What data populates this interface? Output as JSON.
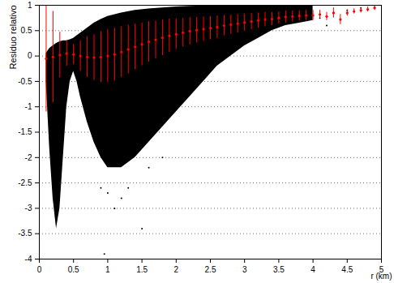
{
  "chart_data": {
    "type": "scatter",
    "x_label": "r (km)",
    "y_label": "Residuo relativo",
    "xlim": [
      0,
      5
    ],
    "ylim": [
      -4,
      1
    ],
    "xticks": [
      0,
      0.5,
      1,
      1.5,
      2,
      2.5,
      3,
      3.5,
      4,
      4.5,
      5
    ],
    "yticks": [
      -4,
      -3.5,
      -3,
      -2.5,
      -2,
      -1.5,
      -1,
      -0.5,
      0,
      0.5,
      1
    ],
    "grid": "y",
    "series": [
      {
        "type": "area",
        "color": "#000000",
        "x": [
          0.1,
          0.15,
          0.2,
          0.25,
          0.3,
          0.35,
          0.4,
          0.45,
          0.5,
          0.55,
          0.6,
          0.7,
          0.8,
          0.9,
          1.0,
          1.2,
          1.4,
          1.6,
          1.8,
          2.0,
          2.2,
          2.4,
          2.6,
          2.8,
          3.0,
          3.2,
          3.4,
          3.6,
          3.8,
          4.0
        ],
        "y_low": [
          -0.5,
          -1.8,
          -2.8,
          -3.4,
          -3.0,
          -2.0,
          -1.0,
          -0.5,
          -0.3,
          -0.5,
          -0.8,
          -1.3,
          -1.7,
          -2.0,
          -2.2,
          -2.2,
          -2.0,
          -1.7,
          -1.4,
          -1.1,
          -0.8,
          -0.5,
          -0.2,
          0.0,
          0.2,
          0.35,
          0.5,
          0.6,
          0.65,
          0.7
        ],
        "y_high": [
          0.05,
          0.15,
          0.2,
          0.25,
          0.28,
          0.3,
          0.3,
          0.32,
          0.35,
          0.4,
          0.45,
          0.55,
          0.65,
          0.72,
          0.78,
          0.85,
          0.9,
          0.93,
          0.95,
          0.97,
          0.98,
          0.99,
          1,
          1,
          1,
          1,
          1,
          1,
          1,
          1
        ]
      },
      {
        "type": "scatter",
        "color": "#000000",
        "marker": "dot",
        "x": [
          0.9,
          0.95,
          1.0,
          1.1,
          1.2,
          1.3,
          1.5,
          1.6,
          1.8,
          4.1,
          4.2,
          4.3,
          4.5,
          4.7
        ],
        "values": [
          -2.6,
          -3.9,
          -2.7,
          -3.0,
          -2.8,
          -2.6,
          -3.4,
          -2.2,
          -2.0,
          0.75,
          0.6,
          0.85,
          0.9,
          0.95
        ]
      },
      {
        "type": "errorbar",
        "color": "#ff0000",
        "marker": "dot",
        "x": [
          0.1,
          0.2,
          0.3,
          0.4,
          0.5,
          0.6,
          0.7,
          0.8,
          0.9,
          1.0,
          1.1,
          1.2,
          1.3,
          1.4,
          1.5,
          1.6,
          1.7,
          1.8,
          1.9,
          2.0,
          2.1,
          2.2,
          2.3,
          2.4,
          2.5,
          2.6,
          2.7,
          2.8,
          2.9,
          3.0,
          3.1,
          3.2,
          3.3,
          3.4,
          3.5,
          3.6,
          3.7,
          3.8,
          3.9,
          4.0,
          4.1,
          4.2,
          4.3,
          4.4,
          4.5,
          4.6,
          4.7,
          4.8,
          4.9
        ],
        "values": [
          -0.05,
          -0.02,
          0.02,
          0.05,
          0.03,
          0.0,
          -0.02,
          -0.03,
          -0.02,
          0.0,
          0.03,
          0.08,
          0.13,
          0.18,
          0.23,
          0.28,
          0.32,
          0.36,
          0.4,
          0.43,
          0.46,
          0.49,
          0.51,
          0.53,
          0.55,
          0.57,
          0.6,
          0.62,
          0.64,
          0.66,
          0.68,
          0.7,
          0.72,
          0.73,
          0.75,
          0.77,
          0.78,
          0.79,
          0.8,
          0.8,
          0.82,
          0.78,
          0.85,
          0.72,
          0.85,
          0.88,
          0.9,
          0.92,
          0.95
        ],
        "error": [
          1.05,
          0.9,
          0.45,
          0.25,
          0.2,
          0.3,
          0.4,
          0.45,
          0.5,
          0.52,
          0.52,
          0.5,
          0.48,
          0.45,
          0.42,
          0.4,
          0.37,
          0.35,
          0.33,
          0.3,
          0.28,
          0.27,
          0.25,
          0.24,
          0.23,
          0.22,
          0.2,
          0.19,
          0.18,
          0.17,
          0.16,
          0.15,
          0.14,
          0.13,
          0.12,
          0.12,
          0.11,
          0.1,
          0.1,
          0.1,
          0.08,
          0.08,
          0.1,
          0.1,
          0.06,
          0.05,
          0.05,
          0.05,
          0.05
        ]
      }
    ]
  }
}
